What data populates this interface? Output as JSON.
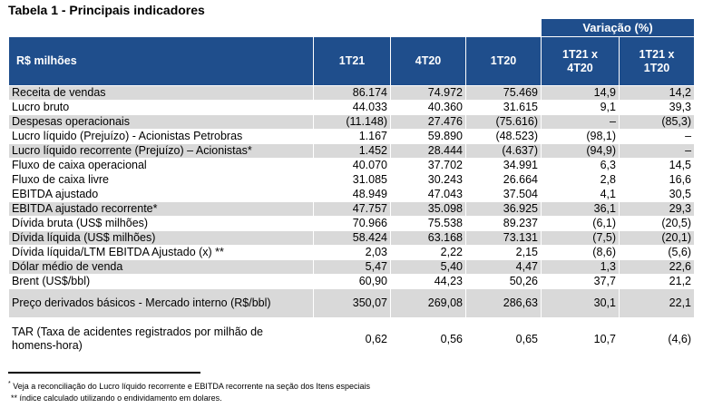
{
  "title": "Tabela 1 - Principais indicadores",
  "header": {
    "variacao": "Variação (%)",
    "col0": "R$ milhões",
    "col1": "1T21",
    "col2": "4T20",
    "col3": "1T20",
    "col4a": "1T21 x",
    "col4b": "4T20",
    "col5a": "1T21 x",
    "col5b": "1T20"
  },
  "rows": [
    {
      "label": "Receita de vendas",
      "v1": "86.174",
      "v2": "74.972",
      "v3": "75.469",
      "v4": "14,9",
      "v5": "14,2"
    },
    {
      "label": "Lucro bruto",
      "v1": "44.033",
      "v2": "40.360",
      "v3": "31.615",
      "v4": "9,1",
      "v5": "39,3"
    },
    {
      "label": "Despesas operacionais",
      "v1": "(11.148)",
      "v2": "27.476",
      "v3": "(75.616)",
      "v4": "–",
      "v5": "(85,3)"
    },
    {
      "label": "Lucro líquido (Prejuízo) - Acionistas Petrobras",
      "v1": "1.167",
      "v2": "59.890",
      "v3": "(48.523)",
      "v4": "(98,1)",
      "v5": "–"
    },
    {
      "label": "Lucro líquido recorrente (Prejuízo) – Acionistas*",
      "v1": "1.452",
      "v2": "28.444",
      "v3": "(4.637)",
      "v4": "(94,9)",
      "v5": "–"
    },
    {
      "label": "Fluxo de caixa operacional",
      "v1": "40.070",
      "v2": "37.702",
      "v3": "34.991",
      "v4": "6,3",
      "v5": "14,5"
    },
    {
      "label": "Fluxo de caixa livre",
      "v1": "31.085",
      "v2": "30.243",
      "v3": "26.664",
      "v4": "2,8",
      "v5": "16,6"
    },
    {
      "label": "EBITDA ajustado",
      "v1": "48.949",
      "v2": "47.043",
      "v3": "37.504",
      "v4": "4,1",
      "v5": "30,5"
    },
    {
      "label": "EBITDA ajustado recorrente*",
      "v1": "47.757",
      "v2": "35.098",
      "v3": "36.925",
      "v4": "36,1",
      "v5": "29,3"
    },
    {
      "label": "Dívida bruta (US$ milhões)",
      "v1": "70.966",
      "v2": "75.538",
      "v3": "89.237",
      "v4": "(6,1)",
      "v5": "(20,5)"
    },
    {
      "label": "Dívida líquida (US$ milhões)",
      "v1": "58.424",
      "v2": "63.168",
      "v3": "73.131",
      "v4": "(7,5)",
      "v5": "(20,1)"
    },
    {
      "label": "Dívida líquida/LTM EBITDA Ajustado (x) **",
      "v1": "2,03",
      "v2": "2,22",
      "v3": "2,15",
      "v4": "(8,6)",
      "v5": "(5,6)"
    },
    {
      "label": "Dólar médio de venda",
      "v1": "5,47",
      "v2": "5,40",
      "v3": "4,47",
      "v4": "1,3",
      "v5": "22,6"
    },
    {
      "label": "Brent (US$/bbl)",
      "v1": "60,90",
      "v2": "44,23",
      "v3": "50,26",
      "v4": "37,7",
      "v5": "21,2"
    },
    {
      "label": "Preço derivados básicos - Mercado interno (R$/bbl)",
      "v1": "350,07",
      "v2": "269,08",
      "v3": "286,63",
      "v4": "30,1",
      "v5": "22,1"
    },
    {
      "label": "TAR (Taxa de acidentes registrados por milhão de homens-hora)",
      "v1": "0,62",
      "v2": "0,56",
      "v3": "0,65",
      "v4": "10,7",
      "v5": "(4,6)"
    }
  ],
  "footnotes": {
    "fn1_mark": "*",
    "fn1": " Veja a reconciliação do Lucro líquido recorrente e EBITDA recorrente na seção dos Itens especiais",
    "fn2": "** índice calculado utilizando o endividamento em dolares."
  }
}
